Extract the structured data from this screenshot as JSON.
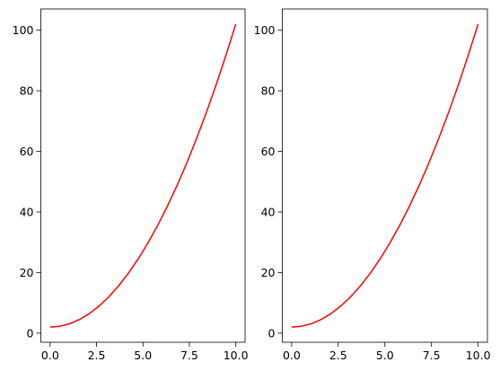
{
  "chart_data": [
    {
      "type": "line",
      "x": [
        0,
        0.526316,
        1.052632,
        1.578947,
        2.105263,
        2.631579,
        3.157895,
        3.684211,
        4.210526,
        4.736842,
        5.263158,
        5.789474,
        6.315789,
        6.842105,
        7.368421,
        7.894737,
        8.421053,
        8.947368,
        9.473684,
        10
      ],
      "series": [
        {
          "color": "red",
          "values": [
            2,
            2.277,
            3.108,
            4.493,
            6.432,
            8.925,
            11.972,
            15.573,
            19.729,
            24.438,
            29.701,
            35.518,
            41.889,
            48.814,
            56.294,
            64.327,
            72.915,
            82.057,
            91.753,
            102
          ]
        }
      ],
      "xlim": [
        -0.5,
        10.5
      ],
      "xticks": [
        {
          "value": 0,
          "label": "0.0"
        },
        {
          "value": 2.5,
          "label": "2.5"
        },
        {
          "value": 5,
          "label": "5.0"
        },
        {
          "value": 7.5,
          "label": "7.5"
        },
        {
          "value": 10,
          "label": "10.0"
        }
      ],
      "ylim": [
        -3,
        107
      ],
      "yticks": [
        0,
        20,
        40,
        60,
        80,
        100
      ]
    },
    {
      "type": "line",
      "x": [
        0,
        0.526316,
        1.052632,
        1.578947,
        2.105263,
        2.631579,
        3.157895,
        3.684211,
        4.210526,
        4.736842,
        5.263158,
        5.789474,
        6.315789,
        6.842105,
        7.368421,
        7.894737,
        8.421053,
        8.947368,
        9.473684,
        10
      ],
      "series": [
        {
          "color": "red",
          "values": [
            2,
            2.277,
            3.108,
            4.493,
            6.432,
            8.925,
            11.972,
            15.573,
            19.729,
            24.438,
            29.701,
            35.518,
            41.889,
            48.814,
            56.294,
            64.327,
            72.915,
            82.057,
            91.753,
            102
          ]
        }
      ],
      "xlim": [
        -0.5,
        10.5
      ],
      "xticks": [
        {
          "value": 0,
          "label": "0.0"
        },
        {
          "value": 2.5,
          "label": "2.5"
        },
        {
          "value": 5,
          "label": "5.0"
        },
        {
          "value": 7.5,
          "label": "7.5"
        },
        {
          "value": 10,
          "label": "10.0"
        }
      ],
      "ylim": [
        -3,
        107
      ],
      "yticks": [
        0,
        20,
        40,
        60,
        80,
        100
      ]
    }
  ]
}
